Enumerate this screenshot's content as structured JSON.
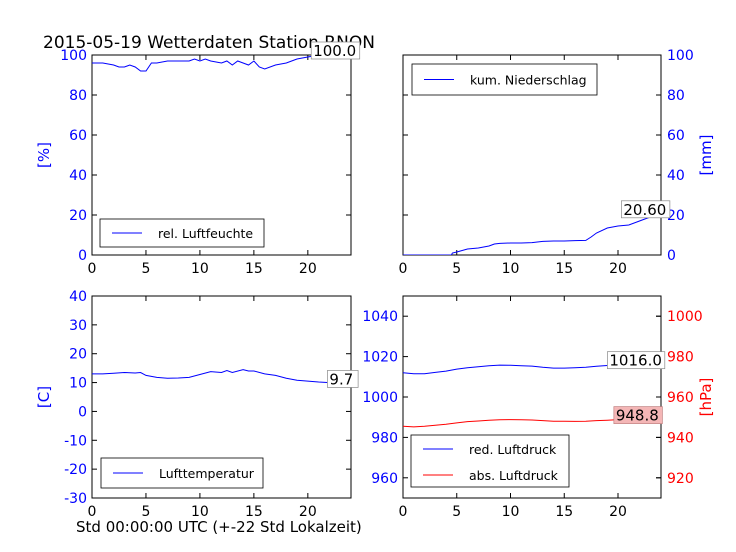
{
  "figure": {
    "title": "2015-05-19 Wetterdaten Station RNON",
    "xlabel": "Std 00:00:00 UTC (+-22 Std Lokalzeit)"
  },
  "colors": {
    "blue": "#0000ff",
    "red": "#ff0000",
    "black": "#000000",
    "pink_box": "#f4b6b6"
  },
  "chart_data": [
    {
      "type": "line",
      "panel": "top-left",
      "ylabel_left": "[%]",
      "xlim": [
        0,
        24
      ],
      "ylim": [
        0,
        100
      ],
      "xticks": [
        0,
        5,
        10,
        15,
        20
      ],
      "yticks": [
        0,
        20,
        40,
        60,
        80,
        100
      ],
      "legend_position": "bottom-left",
      "series": [
        {
          "name": "rel. Luftfeuchte",
          "color": "#0000ff",
          "x": [
            0,
            1,
            2,
            2.5,
            3,
            3.5,
            4,
            4.5,
            5,
            5.5,
            6,
            7,
            8,
            9,
            9.5,
            10,
            10.5,
            11,
            12,
            12.5,
            13,
            13.5,
            14,
            14.5,
            15,
            15.5,
            16,
            17,
            18,
            19,
            20,
            21,
            22,
            23,
            24
          ],
          "y": [
            96,
            96,
            95,
            94,
            94,
            95,
            94,
            92,
            92,
            96,
            96,
            97,
            97,
            97,
            98,
            97,
            98,
            97,
            96,
            97,
            95,
            97,
            96,
            95,
            97,
            94,
            93,
            95,
            96,
            98,
            99,
            100,
            100,
            100,
            100
          ]
        }
      ],
      "annotations": [
        {
          "text": "100.0",
          "x": 20.5,
          "y": 100
        }
      ]
    },
    {
      "type": "line",
      "panel": "top-right",
      "ylabel_right": "[mm]",
      "xlim": [
        0,
        24
      ],
      "ylim": [
        0,
        100
      ],
      "xticks": [
        0,
        5,
        10,
        15,
        20
      ],
      "yticks": [
        0,
        20,
        40,
        60,
        80,
        100
      ],
      "legend_position": "top-left",
      "series": [
        {
          "name": "kum. Niederschlag",
          "color": "#0000ff",
          "x": [
            0,
            4.5,
            4.6,
            5,
            6,
            7,
            8,
            8.5,
            9,
            10,
            11,
            12,
            13,
            14,
            15,
            16,
            17,
            17.5,
            18,
            19,
            20,
            21,
            22,
            23,
            24
          ],
          "y": [
            0,
            0,
            1,
            1.5,
            3,
            3.5,
            4.5,
            5.5,
            5.8,
            6,
            6,
            6.2,
            6.8,
            7,
            7,
            7.2,
            7.3,
            9,
            11,
            13.5,
            14.5,
            15,
            17,
            19,
            20.6
          ]
        }
      ],
      "annotations": [
        {
          "text": "20.60",
          "x": 20.5,
          "y": 20.6
        }
      ]
    },
    {
      "type": "line",
      "panel": "bottom-left",
      "ylabel_left": "[C]",
      "xlim": [
        0,
        24
      ],
      "ylim": [
        -30,
        40
      ],
      "xticks": [
        0,
        5,
        10,
        15,
        20
      ],
      "yticks": [
        -30,
        -20,
        -10,
        0,
        10,
        20,
        30,
        40
      ],
      "legend_position": "bottom-left",
      "series": [
        {
          "name": "Lufttemperatur",
          "color": "#0000ff",
          "x": [
            0,
            1,
            2,
            3,
            4,
            4.5,
            5,
            6,
            7,
            8,
            9,
            10,
            11,
            12,
            12.5,
            13,
            14,
            14.5,
            15,
            16,
            17,
            18,
            19,
            20,
            21,
            22,
            23,
            24
          ],
          "y": [
            13,
            13,
            13.2,
            13.5,
            13.3,
            13.5,
            12.5,
            11.8,
            11.5,
            11.6,
            11.8,
            12.8,
            13.8,
            13.5,
            14.2,
            13.5,
            14.5,
            14,
            14,
            13,
            12.5,
            11.5,
            10.8,
            10.5,
            10.2,
            10,
            9.8,
            9.7
          ]
        }
      ],
      "annotations": [
        {
          "text": "9.7",
          "x": 22,
          "y": 9.7
        }
      ]
    },
    {
      "type": "line",
      "panel": "bottom-right",
      "ylabel_right": "[hPa]",
      "xlim": [
        0,
        24
      ],
      "ylim_left": [
        950,
        1050
      ],
      "ylim_right": [
        910,
        1010
      ],
      "xticks": [
        0,
        5,
        10,
        15,
        20
      ],
      "yticks_left": [
        960,
        980,
        1000,
        1020,
        1040
      ],
      "yticks_right": [
        920,
        940,
        960,
        980,
        1000
      ],
      "legend_position": "bottom-left",
      "series": [
        {
          "name": "red. Luftdruck",
          "color": "#0000ff",
          "axis": "left",
          "x": [
            0,
            1,
            2,
            3,
            4,
            5,
            6,
            7,
            8,
            9,
            10,
            11,
            12,
            13,
            14,
            15,
            16,
            17,
            18,
            19,
            20,
            21,
            22,
            23,
            24
          ],
          "y": [
            1012,
            1011.5,
            1011.5,
            1012.2,
            1012.8,
            1013.8,
            1014.5,
            1015,
            1015.5,
            1015.8,
            1015.7,
            1015.5,
            1015.3,
            1014.7,
            1014.3,
            1014.3,
            1014.5,
            1014.7,
            1015.2,
            1015.6,
            1016,
            1016,
            1016,
            1016,
            1016
          ]
        },
        {
          "name": "abs. Luftdruck",
          "color": "#ff0000",
          "axis": "right",
          "x": [
            0,
            1,
            2,
            3,
            4,
            5,
            6,
            7,
            8,
            9,
            10,
            11,
            12,
            13,
            14,
            15,
            16,
            17,
            18,
            19,
            20,
            21,
            22,
            23,
            24
          ],
          "y": [
            945.5,
            945.2,
            945.5,
            946,
            946.5,
            947.2,
            947.8,
            948.1,
            948.5,
            948.7,
            948.8,
            948.7,
            948.6,
            948.3,
            948,
            948,
            947.9,
            948,
            948.3,
            948.5,
            948.8,
            948.8,
            948.8,
            948.8,
            948.8
          ]
        }
      ],
      "annotations": [
        {
          "text": "1016.0",
          "x": 19.2,
          "y": 1016.0,
          "axis": "left"
        },
        {
          "text": "948.8",
          "x": 19.8,
          "y": 948.8,
          "axis": "right",
          "boxed_pink": true
        }
      ]
    }
  ]
}
